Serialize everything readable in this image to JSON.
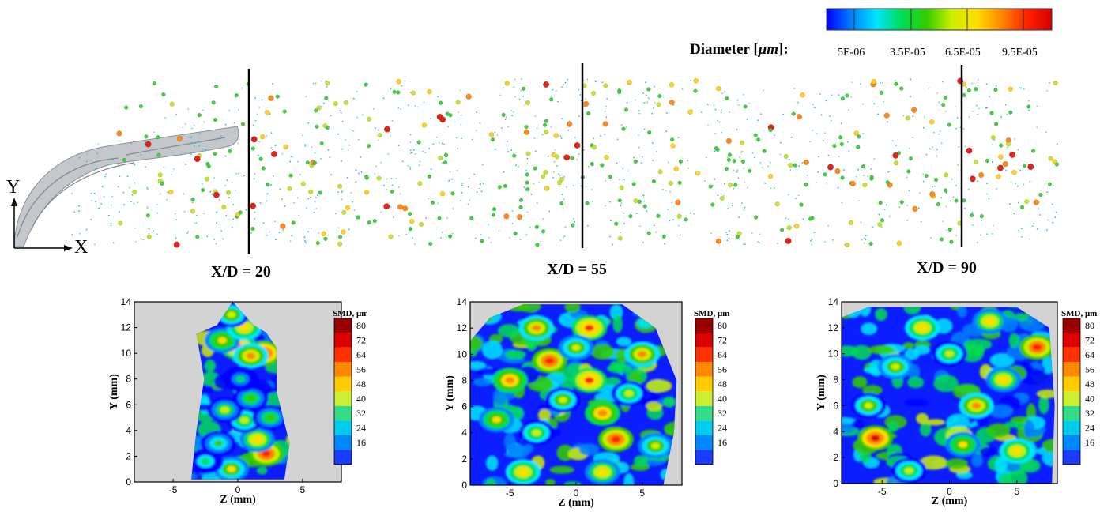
{
  "colors": {
    "background": "#ffffff",
    "no_data_fill": "#d3d3d3",
    "spray_surface": "#9aa0a6",
    "spectrum": [
      "#0000ff",
      "#0080ff",
      "#00e5ff",
      "#00dd55",
      "#33cc00",
      "#ccee00",
      "#ffdd00",
      "#ff8800",
      "#ff2200",
      "#d40000"
    ]
  },
  "spray_view": {
    "legend": {
      "title_prefix": "Diameter [",
      "title_unit": "μm",
      "title_suffix": "]:",
      "ticks": [
        "5E-06",
        "3.5E-05",
        "6.5E-05",
        "9.5E-05"
      ]
    },
    "axis_y_label": "Y",
    "axis_x_label": "X",
    "stations": [
      "X/D = 20",
      "X/D = 55",
      "X/D = 90"
    ]
  },
  "chart_data": [
    {
      "type": "heatmap",
      "title": "X/D = 20",
      "xlabel": "Z (mm)",
      "ylabel": "Y (mm)",
      "xlim": [
        -8,
        8
      ],
      "ylim": [
        0,
        14
      ],
      "xticks": [
        "-5",
        "0",
        "5"
      ],
      "yticks": [
        "0",
        "2",
        "4",
        "6",
        "8",
        "10",
        "12",
        "14"
      ],
      "colorbar": {
        "title": "SMD, μm",
        "levels": [
          "80",
          "72",
          "64",
          "56",
          "48",
          "40",
          "32",
          "24",
          "16"
        ]
      },
      "footprint": [
        [
          -3.6,
          0.2
        ],
        [
          -3.2,
          4
        ],
        [
          -2.6,
          8
        ],
        [
          -3.2,
          11.5
        ],
        [
          -1.6,
          12.2
        ],
        [
          -0.4,
          14
        ],
        [
          1.2,
          12.2
        ],
        [
          2.2,
          11.6
        ],
        [
          3,
          10.4
        ],
        [
          3,
          7
        ],
        [
          4,
          3
        ],
        [
          3.6,
          0.2
        ]
      ],
      "hotspots": [
        [
          0,
          10.5,
          70
        ],
        [
          2,
          10,
          76
        ],
        [
          1,
          9.8,
          64
        ],
        [
          -1.2,
          11,
          56
        ],
        [
          0.5,
          12,
          60
        ],
        [
          2.2,
          2.2,
          72
        ],
        [
          1.5,
          3.3,
          58
        ],
        [
          0.5,
          4.8,
          50
        ],
        [
          -1,
          5.6,
          48
        ],
        [
          1,
          6.5,
          46
        ],
        [
          -0.5,
          1,
          55
        ],
        [
          -2.5,
          1.6,
          40
        ],
        [
          0.2,
          8,
          36
        ],
        [
          -1.5,
          3,
          44
        ],
        [
          2.5,
          5,
          46
        ],
        [
          -0.5,
          13,
          52
        ]
      ]
    },
    {
      "type": "heatmap",
      "title": "X/D = 55",
      "xlabel": "Z (mm)",
      "ylabel": "Y (mm)",
      "xlim": [
        -8,
        8
      ],
      "ylim": [
        0,
        14
      ],
      "xticks": [
        "-5",
        "0",
        "5"
      ],
      "yticks": [
        "0",
        "2",
        "4",
        "6",
        "8",
        "10",
        "12",
        "14"
      ],
      "colorbar": {
        "title": "SMD, μm",
        "levels": [
          "80",
          "72",
          "64",
          "56",
          "48",
          "40",
          "32",
          "24",
          "16"
        ]
      },
      "footprint": [
        [
          -8,
          0
        ],
        [
          -8,
          11
        ],
        [
          -6.5,
          12.8
        ],
        [
          -4,
          13.8
        ],
        [
          3.5,
          13.8
        ],
        [
          6,
          12
        ],
        [
          7.6,
          8
        ],
        [
          7.4,
          4
        ],
        [
          6.6,
          0
        ]
      ],
      "hotspots": [
        [
          3,
          3.5,
          72
        ],
        [
          1,
          8,
          68
        ],
        [
          -2,
          9.5,
          72
        ],
        [
          1,
          12,
          70
        ],
        [
          -5,
          8,
          66
        ],
        [
          -3,
          12,
          64
        ],
        [
          5,
          10,
          62
        ],
        [
          -4,
          1,
          60
        ],
        [
          2,
          5.5,
          66
        ],
        [
          0,
          10.5,
          54
        ],
        [
          -1,
          6.5,
          52
        ],
        [
          4,
          7,
          50
        ],
        [
          -6,
          5,
          56
        ],
        [
          2,
          1,
          58
        ],
        [
          6,
          3,
          54
        ],
        [
          -3,
          4,
          50
        ]
      ]
    },
    {
      "type": "heatmap",
      "title": "X/D = 90",
      "xlabel": "Z (mm)",
      "ylabel": "Y (mm)",
      "xlim": [
        -8,
        8
      ],
      "ylim": [
        0,
        14
      ],
      "xticks": [
        "-5",
        "0",
        "5"
      ],
      "yticks": [
        "0",
        "2",
        "4",
        "6",
        "8",
        "10",
        "12",
        "14"
      ],
      "colorbar": {
        "title": "SMD, μm",
        "levels": [
          "80",
          "72",
          "64",
          "56",
          "48",
          "40",
          "32",
          "24",
          "16"
        ]
      },
      "footprint": [
        [
          -8,
          0
        ],
        [
          -8,
          12.8
        ],
        [
          -6,
          13.6
        ],
        [
          5,
          13.6
        ],
        [
          7.4,
          12
        ],
        [
          7.8,
          6
        ],
        [
          7.6,
          0
        ]
      ],
      "hotspots": [
        [
          -5.5,
          3.5,
          76
        ],
        [
          6.5,
          10.5,
          72
        ],
        [
          2,
          6,
          64
        ],
        [
          -2,
          12,
          60
        ],
        [
          4,
          8,
          58
        ],
        [
          -4,
          9,
          54
        ],
        [
          1,
          3,
          56
        ],
        [
          5,
          2.5,
          60
        ],
        [
          -6,
          6,
          52
        ],
        [
          0,
          10,
          50
        ],
        [
          3,
          12.5,
          58
        ],
        [
          -3,
          1,
          50
        ]
      ]
    }
  ]
}
